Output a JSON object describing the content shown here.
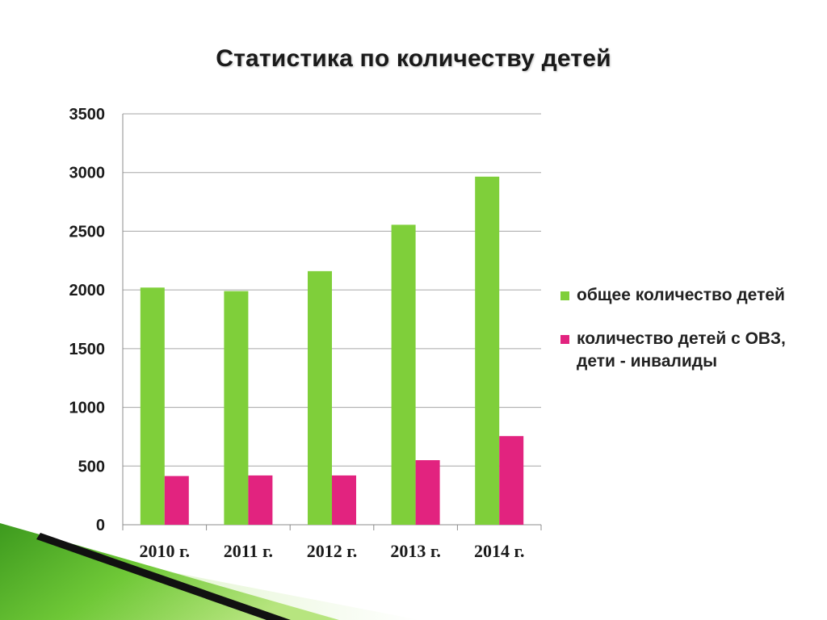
{
  "title": "Статистика по количеству детей",
  "colors": {
    "series_total": "#7fcf3a",
    "series_ovz": "#e2237f",
    "gridline": "#a6a6a6",
    "axis": "#8c8c8c",
    "text": "#1a1a1a"
  },
  "legend": [
    {
      "label": "общее количество детей",
      "color": "#7fcf3a"
    },
    {
      "label": "количество детей с ОВЗ, дети - инвалиды",
      "color": "#e2237f"
    }
  ],
  "chart_data": {
    "type": "bar",
    "title": "Статистика по количеству детей",
    "categories": [
      "2010 г.",
      "2011 г.",
      "2012 г.",
      "2013 г.",
      "2014 г."
    ],
    "series": [
      {
        "name": "общее количество детей",
        "values": [
          2020,
          1990,
          2160,
          2555,
          2965
        ]
      },
      {
        "name": "количество детей с ОВЗ, дети - инвалиды",
        "values": [
          415,
          420,
          420,
          550,
          755
        ]
      }
    ],
    "ylim": [
      0,
      3500
    ],
    "yticks": [
      "0",
      "500",
      "1000",
      "1500",
      "2000",
      "2500",
      "3000",
      "3500"
    ],
    "xlabel": "",
    "ylabel": "",
    "grid": true,
    "legend_position": "right"
  }
}
